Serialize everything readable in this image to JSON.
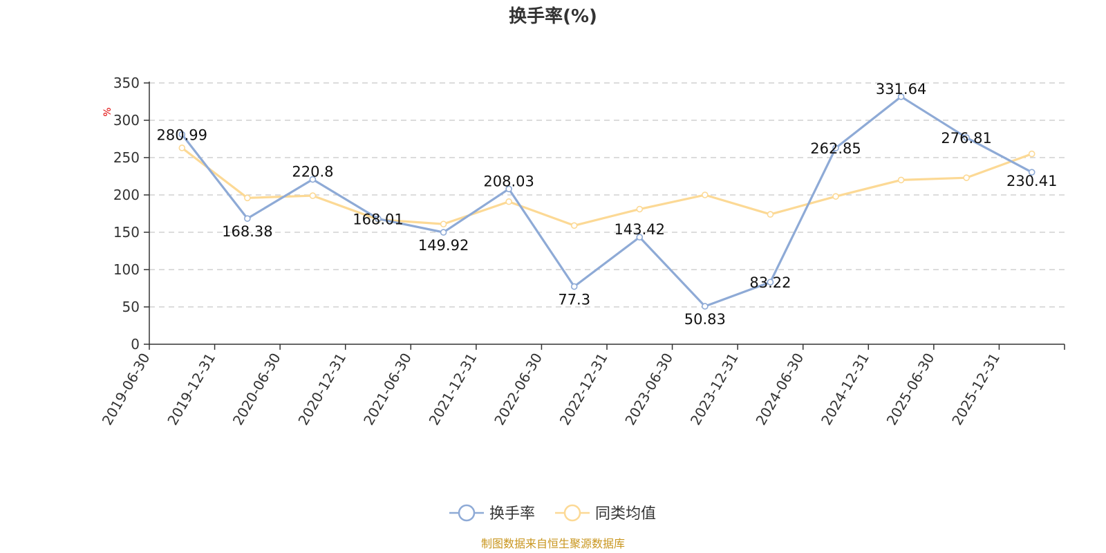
{
  "chart_data": {
    "type": "line",
    "title": "换手率(%)",
    "ylabel": "%",
    "xlabel": "",
    "categories": [
      "2019-06-30",
      "2019-12-31",
      "2020-06-30",
      "2020-12-31",
      "2021-06-30",
      "2021-12-31",
      "2022-06-30",
      "2022-12-31",
      "2023-06-30",
      "2023-12-31",
      "2024-06-30",
      "2024-12-31",
      "2025-06-30",
      "2025-12-31"
    ],
    "ylim": [
      0,
      350
    ],
    "yticks": [
      "0",
      "50",
      "100",
      "150",
      "200",
      "250",
      "300",
      "350"
    ],
    "grid": true,
    "legend_position": "bottom-center",
    "series": [
      {
        "name": "换手率",
        "color": "#8eaad6",
        "values": [
          280.99,
          168.38,
          220.8,
          168.01,
          149.92,
          208.03,
          77.3,
          143.42,
          50.83,
          83.22,
          262.85,
          331.64,
          276.81,
          230.41
        ],
        "labels": [
          "280.99",
          "168.38",
          "220.8",
          "168.01",
          "149.92",
          "208.03",
          "77.3",
          "143.42",
          "50.83",
          "83.22",
          "262.85",
          "331.64",
          "276.81",
          "230.41"
        ]
      },
      {
        "name": "同类均值",
        "color": "#fcd995",
        "values": [
          263,
          196,
          199,
          167,
          161,
          191,
          159,
          181,
          200,
          174,
          198,
          220,
          223,
          255
        ]
      }
    ]
  },
  "source": "制图数据来自恒生聚源数据库"
}
